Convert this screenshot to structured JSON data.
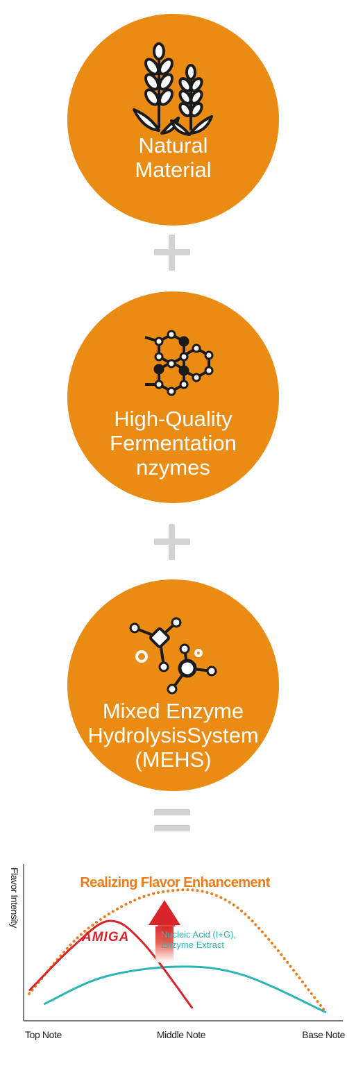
{
  "steps": [
    {
      "label_lines": [
        "Natural",
        "Material"
      ],
      "icon": "wheat-icon"
    },
    {
      "label_lines": [
        "High-Quality",
        "Fermentation",
        "nzymes"
      ],
      "icon": "hexagon-molecule-icon"
    },
    {
      "label_lines": [
        "Mixed Enzyme",
        "HydrolysisSystem",
        "(MEHS)"
      ],
      "icon": "molecule-network-icon"
    }
  ],
  "operators": [
    "plus-icon",
    "plus-icon",
    "equals-icon"
  ],
  "colors": {
    "orange": "#ea8b14",
    "operator_gray": "#d2d2d2",
    "amiga_red": "#d8242b",
    "nucleic_teal": "#2ab5b5",
    "enhancement_orange": "#ee7c1a"
  },
  "chart_data": {
    "type": "line",
    "title": "Realizing Flavor Enhancement",
    "ylabel": "Flavor Intensity",
    "xlabel": "",
    "x_categories": [
      "Top Note",
      "Middle Note",
      "Base Note"
    ],
    "grid": false,
    "series": [
      {
        "name": "AMIGA",
        "style": "solid",
        "color": "#d8242b",
        "points": [
          [
            0.0,
            0.25
          ],
          [
            0.15,
            0.68
          ],
          [
            0.27,
            0.92
          ],
          [
            0.38,
            0.72
          ],
          [
            0.55,
            0.08
          ]
        ]
      },
      {
        "name": "Nucleic Acid (I+G),\nEnzyme Extract",
        "style": "solid",
        "color": "#2ab5b5",
        "points": [
          [
            0.05,
            0.12
          ],
          [
            0.25,
            0.38
          ],
          [
            0.5,
            0.48
          ],
          [
            0.72,
            0.4
          ],
          [
            1.0,
            0.04
          ]
        ]
      },
      {
        "name": "",
        "style": "dotted",
        "color": "#ee7c1a",
        "points": [
          [
            0.0,
            0.22
          ],
          [
            0.2,
            0.85
          ],
          [
            0.45,
            1.2
          ],
          [
            0.7,
            1.05
          ],
          [
            1.0,
            0.04
          ]
        ]
      }
    ],
    "annotations": [
      {
        "text": "AMIGA",
        "series": "AMIGA"
      },
      {
        "text": "Nucleic Acid (I+G),",
        "series": "Nucleic Acid (I+G),\nEnzyme Extract"
      },
      {
        "text": "Enzyme Extract",
        "series": "Nucleic Acid (I+G),\nEnzyme Extract"
      }
    ]
  }
}
